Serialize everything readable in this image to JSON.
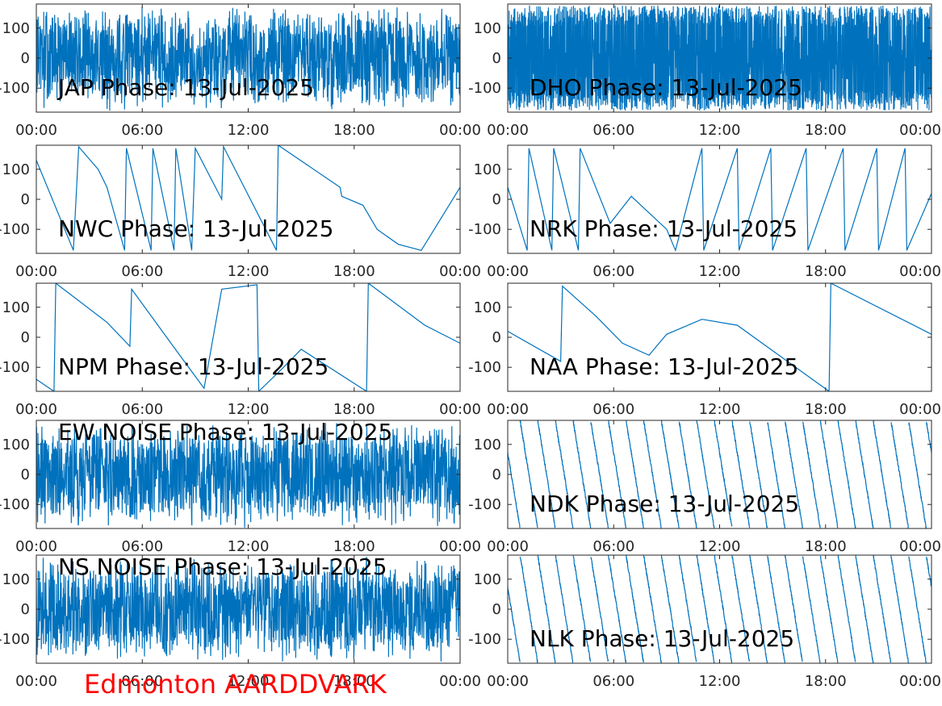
{
  "figure": {
    "footer": "Edmonton AARDDVARK",
    "colors": {
      "line": "#0072BD",
      "axis": "#262626",
      "footer": "#ff0000"
    }
  },
  "chart_data": [
    {
      "type": "line",
      "title": "JAP Phase: 13-Jul-2025",
      "pattern": "noise",
      "xlim": [
        "00:00",
        "24:00"
      ],
      "ylim": [
        -180,
        180
      ],
      "xticks": [
        "00:00",
        "06:00",
        "12:00",
        "18:00",
        "00:00"
      ],
      "yticks": [
        "-100",
        "0",
        "100"
      ],
      "grid": false
    },
    {
      "type": "line",
      "title": "DHO Phase: 13-Jul-2025",
      "pattern": "dense-wrap",
      "xlim": [
        "00:00",
        "24:00"
      ],
      "ylim": [
        -180,
        180
      ],
      "xticks": [
        "00:00",
        "06:00",
        "12:00",
        "18:00",
        "00:00"
      ],
      "yticks": [
        "-100",
        "0",
        "100"
      ],
      "grid": false
    },
    {
      "type": "line",
      "title": "NWC Phase: 13-Jul-2025",
      "pattern": "wrap",
      "xlim": [
        "00:00",
        "24:00"
      ],
      "ylim": [
        -180,
        180
      ],
      "xticks": [
        "00:00",
        "06:00",
        "12:00",
        "18:00",
        "00:00"
      ],
      "yticks": [
        "-100",
        "0",
        "100"
      ],
      "grid": false,
      "x": [
        0,
        2.1,
        2.4,
        3.5,
        4.0,
        5.0,
        5.1,
        6.5,
        6.6,
        7.8,
        7.9,
        8.8,
        9.0,
        10.5,
        10.6,
        13.6,
        13.7,
        17.2,
        17.3,
        18.5,
        19.3,
        20.5,
        21.8,
        24
      ],
      "y": [
        130,
        -170,
        175,
        100,
        40,
        -170,
        170,
        -170,
        170,
        -170,
        170,
        -170,
        170,
        0,
        175,
        -170,
        180,
        40,
        10,
        -20,
        -100,
        -150,
        -170,
        40
      ]
    },
    {
      "type": "line",
      "title": "NRK Phase: 13-Jul-2025",
      "pattern": "wrap",
      "xlim": [
        "00:00",
        "24:00"
      ],
      "ylim": [
        -180,
        180
      ],
      "xticks": [
        "00:00",
        "06:00",
        "12:00",
        "18:00",
        "00:00"
      ],
      "yticks": [
        "-100",
        "0",
        "100"
      ],
      "grid": false,
      "x": [
        0,
        1.1,
        1.2,
        2.5,
        2.6,
        4.0,
        4.1,
        5.8,
        7.0,
        9.0,
        9.5,
        11.0,
        11.1,
        13.0,
        13.1,
        14.9,
        15.0,
        16.9,
        17.0,
        19.0,
        19.1,
        20.9,
        21.0,
        22.5,
        22.6,
        24
      ],
      "y": [
        40,
        -170,
        170,
        -170,
        170,
        -170,
        170,
        -80,
        10,
        -100,
        -170,
        170,
        -170,
        170,
        -170,
        170,
        -170,
        170,
        -170,
        170,
        -170,
        170,
        -170,
        170,
        -170,
        20
      ]
    },
    {
      "type": "line",
      "title": "NPM Phase: 13-Jul-2025",
      "pattern": "wrap",
      "xlim": [
        "00:00",
        "24:00"
      ],
      "ylim": [
        -180,
        180
      ],
      "xticks": [
        "00:00",
        "06:00",
        "12:00",
        "18:00",
        "00:00"
      ],
      "yticks": [
        "-100",
        "0",
        "100"
      ],
      "grid": false,
      "x": [
        0,
        1.0,
        1.1,
        4.0,
        5.3,
        5.4,
        8.0,
        9.0,
        9.5,
        10.5,
        12.5,
        12.6,
        14.0,
        15.0,
        18.7,
        18.8,
        22.0,
        24
      ],
      "y": [
        -140,
        -180,
        180,
        50,
        -30,
        160,
        -50,
        -130,
        -170,
        160,
        175,
        -180,
        -100,
        -40,
        -180,
        180,
        40,
        -20
      ]
    },
    {
      "type": "line",
      "title": "NAA Phase: 13-Jul-2025",
      "pattern": "wrap",
      "xlim": [
        "00:00",
        "24:00"
      ],
      "ylim": [
        -180,
        180
      ],
      "xticks": [
        "00:00",
        "06:00",
        "12:00",
        "18:00",
        "00:00"
      ],
      "yticks": [
        "-100",
        "0",
        "100"
      ],
      "grid": false,
      "x": [
        0,
        3.0,
        3.1,
        5.0,
        6.5,
        8.0,
        9.0,
        11.0,
        13.0,
        18.2,
        18.3,
        24
      ],
      "y": [
        20,
        -80,
        170,
        70,
        -20,
        -60,
        10,
        60,
        40,
        -180,
        180,
        10
      ]
    },
    {
      "type": "line",
      "title": "EW NOISE Phase: 13-Jul-2025",
      "pattern": "noise",
      "xlim": [
        "00:00",
        "24:00"
      ],
      "ylim": [
        -180,
        180
      ],
      "xticks": [
        "00:00",
        "06:00",
        "12:00",
        "18:00",
        "00:00"
      ],
      "yticks": [
        "-100",
        "0",
        "100"
      ],
      "grid": false
    },
    {
      "type": "line",
      "title": "NDK Phase: 13-Jul-2025",
      "pattern": "sawtooth",
      "period_hours": 1.0,
      "xlim": [
        "00:00",
        "24:00"
      ],
      "ylim": [
        -180,
        180
      ],
      "xticks": [
        "00:00",
        "06:00",
        "12:00",
        "18:00",
        "00:00"
      ],
      "yticks": [
        "-100",
        "0",
        "100"
      ],
      "grid": false
    },
    {
      "type": "line",
      "title": "NS NOISE Phase: 13-Jul-2025",
      "pattern": "noise",
      "xlim": [
        "00:00",
        "24:00"
      ],
      "ylim": [
        -180,
        180
      ],
      "xticks": [
        "00:00",
        "06:00",
        "12:00",
        "18:00",
        "00:00"
      ],
      "yticks": [
        "-100",
        "0",
        "100"
      ],
      "grid": false
    },
    {
      "type": "line",
      "title": "NLK Phase: 13-Jul-2025",
      "pattern": "sawtooth",
      "period_hours": 1.0,
      "xlim": [
        "00:00",
        "24:00"
      ],
      "ylim": [
        -180,
        180
      ],
      "xticks": [
        "00:00",
        "06:00",
        "12:00",
        "18:00",
        "00:00"
      ],
      "yticks": [
        "-100",
        "0",
        "100"
      ],
      "grid": false
    }
  ]
}
